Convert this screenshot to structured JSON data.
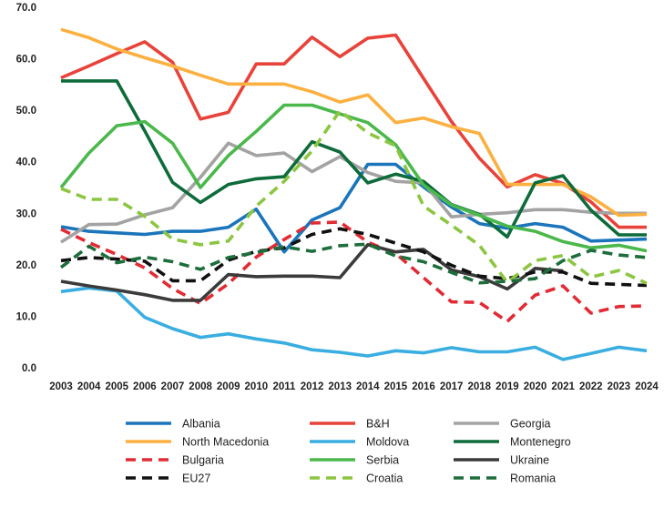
{
  "chart_data": {
    "type": "line",
    "title": "",
    "xlabel": "",
    "ylabel": "",
    "ylim": [
      0,
      70
    ],
    "yticks": [
      "0.0",
      "10.0",
      "20.0",
      "30.0",
      "40.0",
      "50.0",
      "60.0",
      "70.0"
    ],
    "x": [
      "2003",
      "2004",
      "2005",
      "2006",
      "2007",
      "2008",
      "2009",
      "2010",
      "2011",
      "2012",
      "2013",
      "2014",
      "2015",
      "2016",
      "2017",
      "2018",
      "2019",
      "2020",
      "2021",
      "2022",
      "2023",
      "2024"
    ],
    "grid": false,
    "legend_position": "bottom",
    "series": [
      {
        "name": "Albania",
        "color": "#1b75bb",
        "dash": "solid",
        "values": [
          27.4,
          26.5,
          26.2,
          25.9,
          26.5,
          26.5,
          27.3,
          30.8,
          22.5,
          28.7,
          31.1,
          39.5,
          39.5,
          35.1,
          31.2,
          28.0,
          27.1,
          28.0,
          27.3,
          24.6,
          24.8,
          25.0
        ]
      },
      {
        "name": "B&H",
        "color": "#e8433a",
        "dash": "solid",
        "values": [
          56.3,
          58.6,
          61.0,
          63.3,
          59.3,
          48.3,
          49.6,
          59.0,
          59.0,
          64.2,
          60.4,
          64.0,
          64.6,
          56.2,
          47.8,
          40.7,
          35.1,
          37.5,
          35.8,
          32.2,
          27.3,
          27.3
        ]
      },
      {
        "name": "Georgia",
        "color": "#a3a3a3",
        "dash": "solid",
        "values": [
          24.4,
          27.8,
          27.9,
          29.7,
          31.1,
          37.0,
          43.6,
          41.2,
          41.7,
          38.1,
          41.0,
          37.9,
          36.2,
          35.9,
          29.3,
          29.8,
          30.1,
          30.7,
          30.7,
          30.2,
          30.0,
          30.0
        ]
      },
      {
        "name": "North Macedonia",
        "color": "#fbb040",
        "dash": "solid",
        "values": [
          65.7,
          64.1,
          61.9,
          60.2,
          58.6,
          56.8,
          55.1,
          55.1,
          55.1,
          53.6,
          51.6,
          53.0,
          47.6,
          48.5,
          46.8,
          45.5,
          35.6,
          35.6,
          35.6,
          33.2,
          29.6,
          29.8
        ]
      },
      {
        "name": "Moldova",
        "color": "#3aaee0",
        "dash": "solid",
        "values": [
          14.8,
          15.5,
          14.9,
          9.8,
          7.6,
          5.9,
          6.6,
          5.6,
          4.8,
          3.5,
          3.0,
          2.3,
          3.3,
          2.9,
          3.9,
          3.1,
          3.1,
          4.0,
          1.6,
          2.8,
          4.0,
          3.3
        ]
      },
      {
        "name": "Montenegro",
        "color": "#0e6b3a",
        "dash": "solid",
        "values": [
          55.7,
          55.7,
          55.7,
          46.0,
          36.0,
          32.1,
          35.6,
          36.7,
          37.1,
          43.9,
          41.9,
          35.9,
          37.6,
          36.2,
          31.7,
          29.8,
          25.4,
          35.9,
          37.3,
          30.6,
          25.8,
          25.8
        ]
      },
      {
        "name": "Bulgaria",
        "color": "#e12b35",
        "dash": "dashed",
        "values": [
          26.9,
          24.3,
          22.0,
          19.4,
          15.4,
          12.5,
          16.3,
          21.5,
          24.9,
          28.1,
          28.3,
          24.4,
          22.2,
          17.5,
          12.8,
          12.7,
          9.0,
          14.1,
          15.9,
          10.6,
          11.9,
          12.0
        ]
      },
      {
        "name": "Serbia",
        "color": "#4ab84b",
        "dash": "solid",
        "values": [
          35.0,
          41.7,
          47.0,
          47.8,
          43.6,
          35.0,
          41.2,
          45.9,
          51.0,
          51.0,
          49.3,
          47.6,
          43.3,
          35.5,
          31.6,
          29.6,
          27.5,
          26.5,
          24.5,
          23.3,
          23.8,
          22.7
        ]
      },
      {
        "name": "Ukraine",
        "color": "#3b3b3b",
        "dash": "solid",
        "values": [
          16.8,
          15.9,
          15.1,
          14.2,
          13.1,
          13.1,
          18.1,
          17.7,
          17.8,
          17.8,
          17.5,
          23.9,
          22.5,
          23.0,
          19.0,
          17.7,
          15.3,
          19.3,
          18.8,
          null,
          null,
          null
        ]
      },
      {
        "name": "EU27",
        "color": "#111111",
        "dash": "dashed",
        "values": [
          20.8,
          21.4,
          21.1,
          20.7,
          16.9,
          16.9,
          20.9,
          22.6,
          23.3,
          25.9,
          27.0,
          25.9,
          24.2,
          22.5,
          19.9,
          17.8,
          17.3,
          18.6,
          18.6,
          16.4,
          16.2,
          16.0
        ]
      },
      {
        "name": "Croatia",
        "color": "#8cc641",
        "dash": "dashed",
        "values": [
          34.8,
          32.7,
          32.7,
          29.4,
          25.0,
          23.9,
          24.6,
          31.4,
          36.2,
          42.1,
          49.9,
          45.6,
          43.1,
          31.4,
          27.7,
          23.8,
          16.6,
          20.8,
          21.8,
          17.6,
          18.9,
          16.4
        ]
      },
      {
        "name": "Romania",
        "color": "#1e6e3c",
        "dash": "dashed",
        "values": [
          19.5,
          23.6,
          20.4,
          21.5,
          20.6,
          19.1,
          21.4,
          22.4,
          23.5,
          22.6,
          23.7,
          24.0,
          21.7,
          20.6,
          18.5,
          16.5,
          16.8,
          17.3,
          20.8,
          22.8,
          21.9,
          21.4
        ]
      }
    ]
  }
}
